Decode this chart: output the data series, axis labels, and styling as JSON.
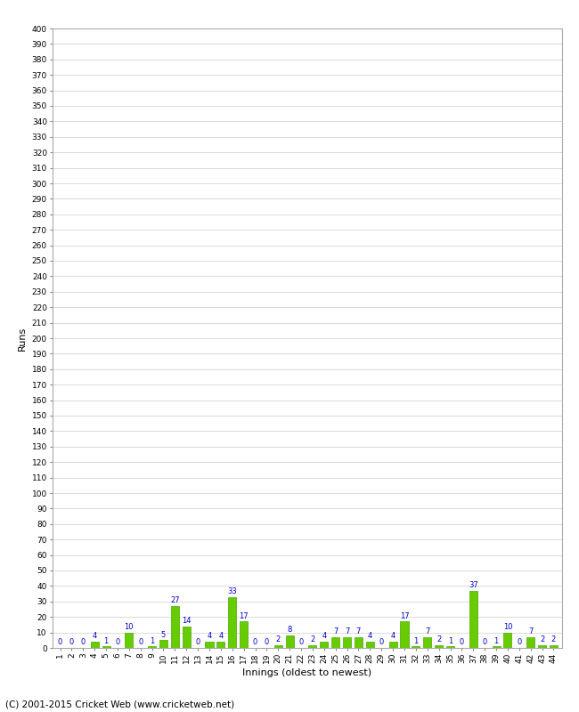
{
  "title": "",
  "xlabel": "Innings (oldest to newest)",
  "ylabel": "Runs",
  "ylim": [
    0,
    400
  ],
  "innings_labels": [
    "1",
    "2",
    "3",
    "4",
    "5",
    "6",
    "7",
    "8",
    "9",
    "10",
    "11",
    "12",
    "13",
    "14",
    "15",
    "16",
    "17",
    "18",
    "19",
    "20",
    "21",
    "22",
    "23",
    "24",
    "25",
    "26",
    "27",
    "28",
    "29",
    "30",
    "31",
    "32",
    "33",
    "34",
    "35",
    "36",
    "37",
    "38",
    "39",
    "40",
    "41",
    "42",
    "43",
    "44"
  ],
  "values": [
    0,
    0,
    0,
    4,
    1,
    0,
    10,
    0,
    1,
    5,
    27,
    14,
    0,
    4,
    4,
    33,
    17,
    0,
    0,
    2,
    8,
    0,
    2,
    4,
    7,
    7,
    7,
    4,
    0,
    4,
    17,
    1,
    7,
    2,
    1,
    0,
    37,
    0,
    1,
    10,
    0,
    7,
    2,
    2
  ],
  "bar_color": "#66cc00",
  "bar_edge_color": "#44aa00",
  "label_color": "#0000cc",
  "bg_color": "#ffffff",
  "grid_color": "#cccccc",
  "footer_text": "(C) 2001-2015 Cricket Web (www.cricketweb.net)",
  "axis_label_fontsize": 8,
  "tick_label_fontsize": 6.5,
  "bar_label_fontsize": 6,
  "footer_fontsize": 7.5
}
